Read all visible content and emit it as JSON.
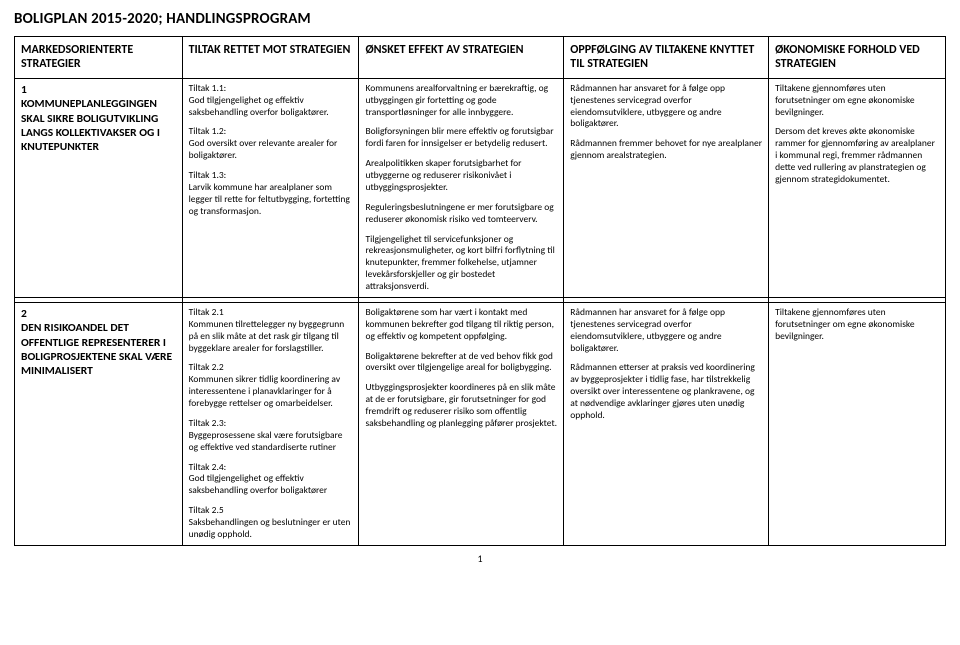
{
  "doc_title": "BOLIGPLAN 2015-2020; HANDLINGSPROGRAM",
  "headers": {
    "col_a": "MARKEDSORIENTERTE STRATEGIER",
    "col_b": "TILTAK RETTET MOT STRATEGIEN",
    "col_c": "ØNSKET EFFEKT AV STRATEGIEN",
    "col_d": "OPPFØLGING AV TILTAKENE KNYTTET TIL STRATEGIEN",
    "col_e": "ØKONOMISKE FORHOLD VED STRATEGIEN"
  },
  "rows": [
    {
      "strategy_num": "1",
      "strategy_text": "KOMMUNEPLANLEGGINGEN SKAL SIKRE BOLIGUTVIKLING LANGS KOLLEKTIVAKSER OG I KNUTEPUNKTER",
      "tiltak": [
        {
          "head": "Tiltak 1.1:",
          "body": "God tilgjengelighet og effektiv saksbehandling overfor boligaktører."
        },
        {
          "head": "Tiltak 1.2:",
          "body": "God oversikt over relevante arealer for boligaktører."
        },
        {
          "head": "Tiltak 1.3:",
          "body": "Larvik kommune har arealplaner som legger til rette for feltutbygging, fortetting og transformasjon."
        }
      ],
      "effekt": [
        "Kommunens arealforvaltning er bærekraftig, og utbyggingen gir fortetting og gode transportløsninger for alle innbyggere.",
        "Boligforsyningen blir mere effektiv og forutsigbar fordi faren for innsigelser er betydelig redusert.",
        "Arealpolitikken skaper forutsigbarhet for utbyggerne og reduserer risikonivået i utbyggingsprosjekter.",
        "Reguleringsbeslutningene er mer forutsigbare og reduserer økonomisk risiko ved tomteerverv.",
        "Tilgjengelighet til servicefunksjoner og rekreasjonsmuligheter, og kort bilfri forflytning til knutepunkter, fremmer folkehelse, utjamner levekårsforskjeller og gir bostedet attraksjonsverdi."
      ],
      "oppfolging": [
        "Rådmannen har ansvaret for å følge opp tjenestenes servicegrad overfor eiendomsutviklere, utbyggere og andre boligaktører.",
        "Rådmannen fremmer behovet for nye arealplaner gjennom arealstrategien."
      ],
      "okonomi": [
        "Tiltakene gjennomføres uten forutsetninger om egne økonomiske bevilgninger.",
        "Dersom det kreves økte økonomiske rammer for gjennomføring av arealplaner i kommunal regi, fremmer rådmannen dette ved rullering av planstrategien og gjennom strategidokumentet."
      ]
    },
    {
      "strategy_num": "2",
      "strategy_text": "DEN RISIKOANDEL DET OFFENTLIGE REPRESENTERER I BOLIGPROSJEKTENE SKAL VÆRE MINIMALISERT",
      "tiltak": [
        {
          "head": "Tiltak 2.1",
          "body": "Kommunen tilrettelegger ny byggegrunn på en slik måte at det rask gir tilgang til byggeklare arealer for forslagstiller."
        },
        {
          "head": "Tiltak 2.2",
          "body": "Kommunen sikrer tidlig koordinering av interessentene i planavklaringer for å forebygge rettelser og omarbeidelser."
        },
        {
          "head": "Tiltak 2.3:",
          "body": "Byggeprosessene skal være forutsigbare og effektive ved standardiserte rutiner"
        },
        {
          "head": "Tiltak 2.4:",
          "body": "God tilgjengelighet og effektiv saksbehandling overfor boligaktører"
        },
        {
          "head": "Tiltak 2.5",
          "body": "Saksbehandlingen og beslutninger er uten unødig opphold."
        }
      ],
      "effekt": [
        "Boligaktørene som har vært i kontakt med kommunen bekrefter god tilgang til riktig person, og effektiv og kompetent oppfølging.",
        "Boligaktørene bekrefter at de ved behov fikk god oversikt over tilgjengelige areal for boligbygging.",
        "Utbyggingsprosjekter koordineres på en slik måte at de er forutsigbare, gir forutsetninger for god fremdrift og reduserer risiko som offentlig saksbehandling og planlegging påfører prosjektet."
      ],
      "oppfolging": [
        "Rådmannen har ansvaret for å følge opp tjenestenes servicegrad overfor eiendomsutviklere, utbyggere og andre boligaktører.",
        "Rådmannen etterser at praksis ved koordinering av byggeprosjekter i tidlig fase, har tilstrekkelig oversikt over interessentene og plankravene, og at nødvendige avklaringer gjøres uten unødig opphold."
      ],
      "okonomi": [
        "Tiltakene gjennomføres uten forutsetninger om egne økonomiske bevilgninger."
      ]
    }
  ],
  "page_number": "1"
}
